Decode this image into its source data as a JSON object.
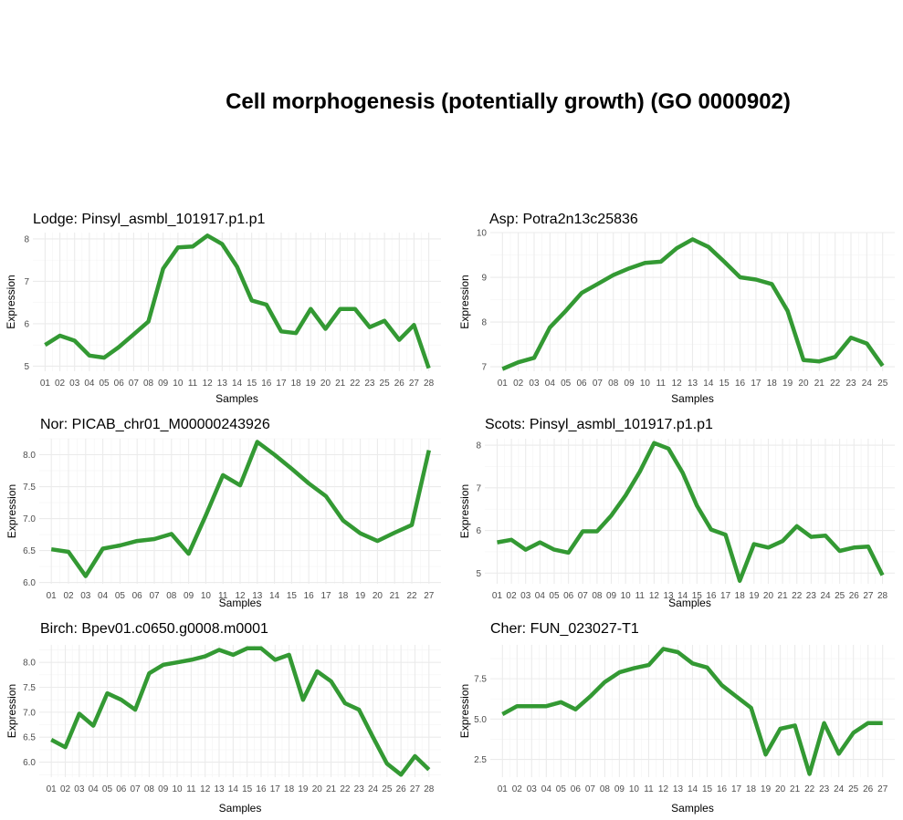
{
  "title": "Cell morphogenesis (potentially growth) (GO 0000902)",
  "colors": {
    "line": "#339933"
  },
  "chart_data": [
    {
      "type": "line",
      "title": "Lodge: Pinsyl_asmbl_101917.p1.p1",
      "xlabel": "Samples",
      "ylabel": "Expression",
      "categories": [
        "01",
        "02",
        "03",
        "04",
        "05",
        "06",
        "07",
        "08",
        "09",
        "10",
        "11",
        "12",
        "13",
        "14",
        "15",
        "16",
        "17",
        "18",
        "19",
        "20",
        "21",
        "22",
        "23",
        "25",
        "26",
        "27",
        "28"
      ],
      "values": [
        5.5,
        5.72,
        5.6,
        5.25,
        5.2,
        5.45,
        5.75,
        6.05,
        7.3,
        7.8,
        7.82,
        8.08,
        7.88,
        7.35,
        6.55,
        6.45,
        5.82,
        5.78,
        6.35,
        5.88,
        6.35,
        6.35,
        5.92,
        6.07,
        5.62,
        5.97,
        4.95
      ],
      "ylim": [
        4.88,
        8.15
      ],
      "yticks": [
        5,
        6,
        7,
        8
      ],
      "ytick_labels": [
        "5",
        "6",
        "7",
        "8"
      ]
    },
    {
      "type": "line",
      "title": "Asp: Potra2n13c25836",
      "xlabel": "Samples",
      "ylabel": "Expression",
      "categories": [
        "01",
        "02",
        "03",
        "04",
        "05",
        "06",
        "07",
        "08",
        "09",
        "10",
        "11",
        "12",
        "13",
        "14",
        "15",
        "16",
        "17",
        "18",
        "19",
        "20",
        "21",
        "22",
        "23",
        "24",
        "25"
      ],
      "values": [
        6.95,
        7.1,
        7.2,
        7.88,
        8.25,
        8.65,
        8.85,
        9.05,
        9.2,
        9.32,
        9.35,
        9.65,
        9.85,
        9.68,
        9.35,
        9.0,
        8.95,
        8.85,
        8.25,
        7.15,
        7.12,
        7.22,
        7.65,
        7.52,
        7.02
      ],
      "ylim": [
        6.9,
        10.0
      ],
      "yticks": [
        7,
        8,
        9,
        10
      ],
      "ytick_labels": [
        "7",
        "8",
        "9",
        "10"
      ]
    },
    {
      "type": "line",
      "title": "Nor: PICAB_chr01_M00000243926",
      "xlabel": "Samples",
      "ylabel": "Expression",
      "categories": [
        "01",
        "02",
        "03",
        "04",
        "05",
        "06",
        "07",
        "08",
        "09",
        "10",
        "11",
        "12",
        "13",
        "14",
        "15",
        "16",
        "17",
        "18",
        "19",
        "20",
        "21",
        "22",
        "27"
      ],
      "values": [
        6.52,
        6.48,
        6.1,
        6.53,
        6.58,
        6.65,
        6.68,
        6.76,
        6.45,
        7.05,
        7.68,
        7.52,
        8.2,
        8.0,
        7.78,
        7.55,
        7.35,
        6.97,
        6.77,
        6.65,
        6.78,
        6.9,
        8.07
      ],
      "ylim": [
        5.98,
        8.25
      ],
      "yticks": [
        6.0,
        6.5,
        7.0,
        7.5,
        8.0
      ],
      "ytick_labels": [
        "6.0",
        "6.5",
        "7.0",
        "7.5",
        "8.0"
      ]
    },
    {
      "type": "line",
      "title": "Scots: Pinsyl_asmbl_101917.p1.p1",
      "xlabel": "Samples",
      "ylabel": "Expression",
      "categories": [
        "01",
        "02",
        "03",
        "04",
        "05",
        "06",
        "07",
        "08",
        "09",
        "10",
        "11",
        "12",
        "13",
        "14",
        "15",
        "16",
        "17",
        "18",
        "19",
        "20",
        "21",
        "22",
        "23",
        "24",
        "25",
        "26",
        "27",
        "28"
      ],
      "values": [
        5.72,
        5.78,
        5.55,
        5.72,
        5.55,
        5.48,
        5.98,
        5.98,
        6.35,
        6.82,
        7.38,
        8.05,
        7.92,
        7.35,
        6.58,
        6.02,
        5.9,
        4.82,
        5.68,
        5.6,
        5.75,
        6.1,
        5.85,
        5.88,
        5.52,
        5.6,
        5.62,
        4.95
      ],
      "ylim": [
        4.75,
        8.15
      ],
      "yticks": [
        5,
        6,
        7,
        8
      ],
      "ytick_labels": [
        "5",
        "6",
        "7",
        "8"
      ]
    },
    {
      "type": "line",
      "title": "Birch: Bpev01.c0650.g0008.m0001",
      "xlabel": "Samples",
      "ylabel": "Expression",
      "categories": [
        "01",
        "02",
        "03",
        "04",
        "05",
        "06",
        "07",
        "08",
        "09",
        "10",
        "11",
        "12",
        "13",
        "14",
        "15",
        "16",
        "17",
        "18",
        "19",
        "20",
        "21",
        "22",
        "23",
        "24",
        "25",
        "26",
        "27",
        "28"
      ],
      "values": [
        6.45,
        6.3,
        6.97,
        6.73,
        7.38,
        7.25,
        7.05,
        7.78,
        7.95,
        8.0,
        8.05,
        8.12,
        8.25,
        8.15,
        8.28,
        8.28,
        8.05,
        8.15,
        7.25,
        7.82,
        7.62,
        7.18,
        7.05,
        6.5,
        5.97,
        5.75,
        6.12,
        5.85
      ],
      "ylim": [
        5.7,
        8.35
      ],
      "yticks": [
        6.0,
        6.5,
        7.0,
        7.5,
        8.0
      ],
      "ytick_labels": [
        "6.0",
        "6.5",
        "7.0",
        "7.5",
        "8.0"
      ]
    },
    {
      "type": "line",
      "title": "Cher: FUN_023027-T1",
      "xlabel": "Samples",
      "ylabel": "Expression",
      "categories": [
        "01",
        "02",
        "03",
        "04",
        "05",
        "06",
        "07",
        "08",
        "09",
        "10",
        "11",
        "12",
        "13",
        "14",
        "15",
        "16",
        "17",
        "18",
        "19",
        "20",
        "21",
        "22",
        "23",
        "24",
        "25",
        "26",
        "27"
      ],
      "values": [
        5.3,
        5.8,
        5.8,
        5.8,
        6.05,
        5.6,
        6.4,
        7.3,
        7.9,
        8.15,
        8.35,
        9.35,
        9.15,
        8.45,
        8.2,
        7.1,
        6.4,
        5.7,
        2.8,
        4.4,
        4.6,
        1.6,
        4.75,
        2.85,
        4.15,
        4.75,
        4.75
      ],
      "ylim": [
        1.4,
        9.6
      ],
      "yticks": [
        2.5,
        5.0,
        7.5
      ],
      "ytick_labels": [
        "2.5",
        "5.0",
        "7.5"
      ]
    }
  ]
}
